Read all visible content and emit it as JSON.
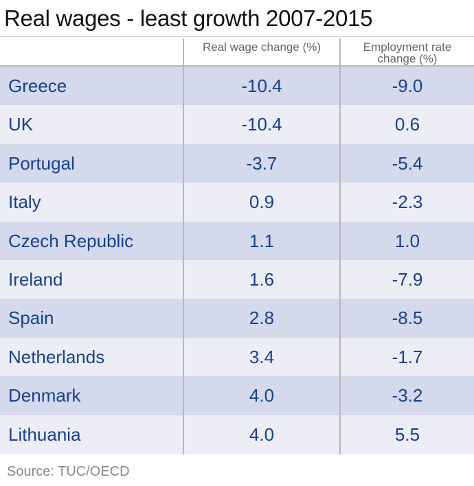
{
  "chart_data": {
    "type": "table",
    "title": "Real wages - least growth 2007-2015",
    "columns": [
      "",
      "Real wage change (%)",
      "Employment rate change (%)"
    ],
    "column_header_lines": {
      "wage": "Real wage change (%)",
      "employment_line1": "Employment rate",
      "employment_line2": "change (%)"
    },
    "rows": [
      {
        "country": "Greece",
        "wage": "-10.4",
        "employment": "-9.0"
      },
      {
        "country": "UK",
        "wage": "-10.4",
        "employment": "0.6"
      },
      {
        "country": "Portugal",
        "wage": "-3.7",
        "employment": "-5.4"
      },
      {
        "country": "Italy",
        "wage": "0.9",
        "employment": "-2.3"
      },
      {
        "country": "Czech Republic",
        "wage": "1.1",
        "employment": "1.0"
      },
      {
        "country": "Ireland",
        "wage": "1.6",
        "employment": "-7.9"
      },
      {
        "country": "Spain",
        "wage": "2.8",
        "employment": "-8.5"
      },
      {
        "country": "Netherlands",
        "wage": "3.4",
        "employment": "-1.7"
      },
      {
        "country": "Denmark",
        "wage": "4.0",
        "employment": "-3.2"
      },
      {
        "country": "Lithuania",
        "wage": "4.0",
        "employment": "5.5"
      }
    ],
    "source": "Source: TUC/OECD"
  },
  "colors": {
    "row_dark": "#d4d9ec",
    "row_light": "#ecedf5",
    "text_blue": "#17418d",
    "header_gray": "#666666",
    "source_gray": "#888888"
  }
}
